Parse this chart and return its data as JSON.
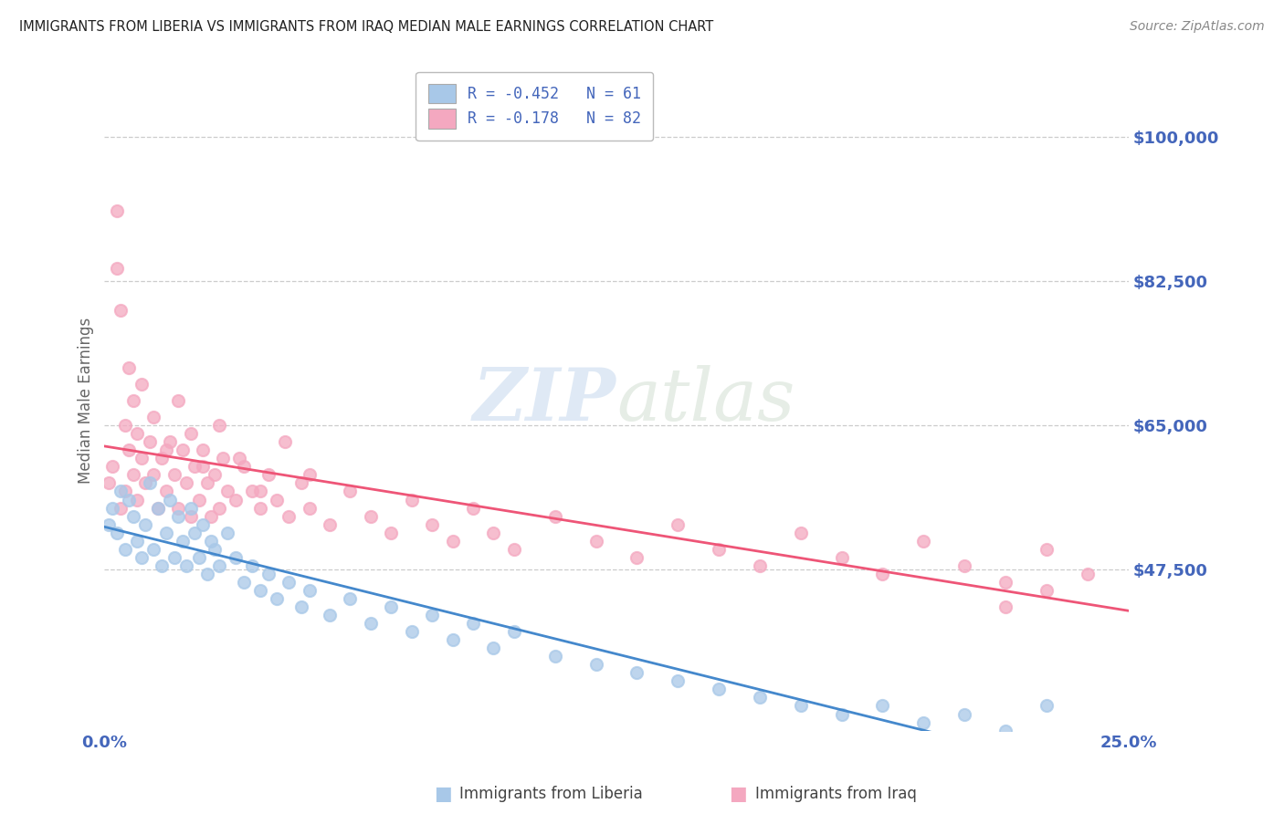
{
  "title": "IMMIGRANTS FROM LIBERIA VS IMMIGRANTS FROM IRAQ MEDIAN MALE EARNINGS CORRELATION CHART",
  "source": "Source: ZipAtlas.com",
  "ylabel": "Median Male Earnings",
  "watermark": "ZIPatlas",
  "xlim": [
    0.0,
    0.25
  ],
  "ylim": [
    28000,
    108000
  ],
  "yticks": [
    47500,
    65000,
    82500,
    100000
  ],
  "ytick_labels": [
    "$47,500",
    "$65,000",
    "$82,500",
    "$100,000"
  ],
  "xtick_positions": [
    0.0,
    0.05,
    0.1,
    0.15,
    0.2,
    0.25
  ],
  "xtick_labels": [
    "0.0%",
    "",
    "",
    "",
    "",
    "25.0%"
  ],
  "liberia_R": -0.452,
  "liberia_N": 61,
  "iraq_R": -0.178,
  "iraq_N": 82,
  "liberia_color": "#a8c8e8",
  "iraq_color": "#f4a8c0",
  "liberia_line_color": "#4488cc",
  "iraq_line_color": "#ee5577",
  "title_color": "#222222",
  "tick_label_color": "#4466bb",
  "source_color": "#888888",
  "legend_label_color": "#4466bb",
  "grid_color": "#cccccc",
  "background_color": "#ffffff",
  "liberia_x": [
    0.001,
    0.002,
    0.003,
    0.004,
    0.005,
    0.006,
    0.007,
    0.008,
    0.009,
    0.01,
    0.011,
    0.012,
    0.013,
    0.014,
    0.015,
    0.016,
    0.017,
    0.018,
    0.019,
    0.02,
    0.021,
    0.022,
    0.023,
    0.024,
    0.025,
    0.026,
    0.027,
    0.028,
    0.03,
    0.032,
    0.034,
    0.036,
    0.038,
    0.04,
    0.042,
    0.045,
    0.048,
    0.05,
    0.055,
    0.06,
    0.065,
    0.07,
    0.075,
    0.08,
    0.085,
    0.09,
    0.095,
    0.1,
    0.11,
    0.12,
    0.13,
    0.14,
    0.15,
    0.16,
    0.17,
    0.18,
    0.19,
    0.2,
    0.21,
    0.22,
    0.23
  ],
  "liberia_y": [
    53000,
    55000,
    52000,
    57000,
    50000,
    56000,
    54000,
    51000,
    49000,
    53000,
    58000,
    50000,
    55000,
    48000,
    52000,
    56000,
    49000,
    54000,
    51000,
    48000,
    55000,
    52000,
    49000,
    53000,
    47000,
    51000,
    50000,
    48000,
    52000,
    49000,
    46000,
    48000,
    45000,
    47000,
    44000,
    46000,
    43000,
    45000,
    42000,
    44000,
    41000,
    43000,
    40000,
    42000,
    39000,
    41000,
    38000,
    40000,
    37000,
    36000,
    35000,
    34000,
    33000,
    32000,
    31000,
    30000,
    31000,
    29000,
    30000,
    28000,
    31000
  ],
  "iraq_x": [
    0.001,
    0.002,
    0.003,
    0.004,
    0.005,
    0.006,
    0.007,
    0.008,
    0.009,
    0.01,
    0.011,
    0.012,
    0.013,
    0.014,
    0.015,
    0.016,
    0.017,
    0.018,
    0.019,
    0.02,
    0.021,
    0.022,
    0.023,
    0.024,
    0.025,
    0.026,
    0.027,
    0.028,
    0.029,
    0.03,
    0.032,
    0.034,
    0.036,
    0.038,
    0.04,
    0.042,
    0.045,
    0.048,
    0.05,
    0.055,
    0.06,
    0.065,
    0.07,
    0.075,
    0.08,
    0.085,
    0.09,
    0.095,
    0.1,
    0.11,
    0.12,
    0.13,
    0.14,
    0.15,
    0.16,
    0.17,
    0.18,
    0.19,
    0.2,
    0.21,
    0.22,
    0.23,
    0.24,
    0.003,
    0.004,
    0.005,
    0.006,
    0.007,
    0.008,
    0.009,
    0.012,
    0.015,
    0.018,
    0.021,
    0.024,
    0.028,
    0.033,
    0.038,
    0.044,
    0.05,
    0.22,
    0.23
  ],
  "iraq_y": [
    58000,
    60000,
    91000,
    55000,
    57000,
    62000,
    59000,
    56000,
    61000,
    58000,
    63000,
    59000,
    55000,
    61000,
    57000,
    63000,
    59000,
    55000,
    62000,
    58000,
    54000,
    60000,
    56000,
    62000,
    58000,
    54000,
    59000,
    55000,
    61000,
    57000,
    56000,
    60000,
    57000,
    55000,
    59000,
    56000,
    54000,
    58000,
    55000,
    53000,
    57000,
    54000,
    52000,
    56000,
    53000,
    51000,
    55000,
    52000,
    50000,
    54000,
    51000,
    49000,
    53000,
    50000,
    48000,
    52000,
    49000,
    47000,
    51000,
    48000,
    46000,
    50000,
    47000,
    84000,
    79000,
    65000,
    72000,
    68000,
    64000,
    70000,
    66000,
    62000,
    68000,
    64000,
    60000,
    65000,
    61000,
    57000,
    63000,
    59000,
    43000,
    45000
  ]
}
